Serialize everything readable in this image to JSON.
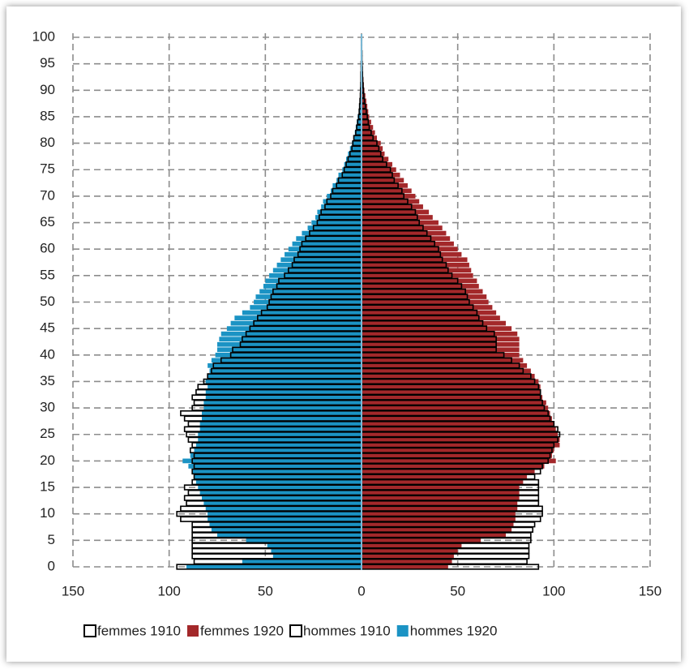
{
  "chart_data": {
    "type": "pyramid",
    "categories": [
      0,
      null,
      null,
      null,
      null,
      5,
      null,
      null,
      null,
      null,
      10,
      null,
      null,
      null,
      null,
      15,
      null,
      null,
      null,
      null,
      20,
      null,
      null,
      null,
      null,
      25,
      null,
      null,
      null,
      null,
      30,
      null,
      null,
      null,
      null,
      35,
      null,
      null,
      null,
      null,
      40,
      null,
      null,
      null,
      null,
      45,
      null,
      null,
      null,
      null,
      50,
      null,
      null,
      null,
      null,
      55,
      null,
      null,
      null,
      null,
      60,
      null,
      null,
      null,
      null,
      65,
      null,
      null,
      null,
      null,
      70,
      null,
      null,
      null,
      null,
      75,
      null,
      null,
      null,
      null,
      80,
      null,
      null,
      null,
      null,
      85,
      null,
      null,
      null,
      null,
      90,
      null,
      null,
      null,
      null,
      95,
      null,
      null,
      null,
      null,
      100
    ],
    "series": [
      {
        "name": "femmes 1910",
        "color": "#000000",
        "style": "outline",
        "values": [
          92,
          86,
          87,
          87,
          87,
          88,
          88,
          89,
          90,
          93,
          94,
          94,
          92,
          92,
          92,
          92,
          92,
          90,
          93,
          94,
          97,
          98,
          99,
          100,
          102,
          103,
          102,
          100,
          98,
          97,
          95,
          94,
          93,
          93,
          92,
          90,
          88,
          84,
          82,
          78,
          74,
          70,
          70,
          70,
          69,
          65,
          63,
          61,
          60,
          58,
          56,
          55,
          54,
          52,
          50,
          47,
          45,
          44,
          42,
          41,
          40,
          38,
          36,
          34,
          32,
          30,
          29,
          28,
          26,
          24,
          22,
          21,
          19,
          17,
          16,
          15,
          13,
          11,
          10,
          9,
          8,
          6,
          5,
          4,
          3.5,
          3,
          2.5,
          2,
          1.5,
          1.2,
          1,
          0.8,
          0.6,
          0.5,
          0.4,
          0.3,
          0.2,
          0.2,
          0.1,
          0.1,
          0.1
        ]
      },
      {
        "name": "femmes 1920",
        "color": "#a3282a",
        "style": "fill",
        "values": [
          45,
          47,
          48,
          50,
          52,
          62,
          75,
          78,
          79,
          80,
          80,
          81,
          81,
          82,
          82,
          82,
          84,
          86,
          90,
          95,
          101,
          99,
          100,
          103,
          103,
          102,
          101,
          100,
          99,
          98,
          97,
          96,
          94,
          93,
          93,
          92,
          90,
          88,
          86,
          84,
          82,
          82,
          82,
          82,
          81,
          78,
          75,
          72,
          70,
          68,
          66,
          65,
          63,
          61,
          60,
          58,
          57,
          56,
          55,
          52,
          50,
          48,
          46,
          44,
          42,
          40,
          37,
          35,
          32,
          30,
          28,
          26,
          24,
          22,
          20,
          18,
          16,
          14,
          12,
          11,
          10,
          8,
          7,
          6,
          5,
          4,
          3.5,
          3,
          2.5,
          2,
          1.5,
          1.2,
          1,
          0.8,
          0.6,
          0.4,
          0.3,
          0.2,
          0.2,
          0.1,
          0.1
        ]
      },
      {
        "name": "hommes 1910",
        "color": "#000000",
        "style": "outline",
        "values": [
          -96,
          -87,
          -88,
          -88,
          -88,
          -88,
          -88,
          -88,
          -88,
          -94,
          -96,
          -94,
          -91,
          -92,
          -90,
          -92,
          -88,
          -87,
          -88,
          -87,
          -88,
          -87,
          -89,
          -88,
          -90,
          -91,
          -92,
          -90,
          -92,
          -94,
          -88,
          -87,
          -88,
          -86,
          -85,
          -82,
          -80,
          -78,
          -77,
          -73,
          -68,
          -67,
          -63,
          -62,
          -60,
          -58,
          -56,
          -54,
          -52,
          -49,
          -48,
          -47,
          -46,
          -44,
          -43,
          -40,
          -38,
          -36,
          -35,
          -33,
          -32,
          -31,
          -29,
          -27,
          -25,
          -23,
          -22,
          -21,
          -19,
          -18,
          -16,
          -15,
          -13,
          -12,
          -10,
          -9,
          -8,
          -7,
          -6,
          -5,
          -4.5,
          -4,
          -3,
          -2.5,
          -2,
          -1.5,
          -1.2,
          -1,
          -0.8,
          -0.6,
          -0.5,
          -0.4,
          -0.3,
          -0.3,
          -0.2,
          -0.2,
          -0.1,
          -0.1,
          -0.1,
          -0.1,
          -0.1
        ]
      },
      {
        "name": "hommes 1920",
        "color": "#1b93c4",
        "style": "fill",
        "values": [
          -91,
          -62,
          -46,
          -47,
          -49,
          -60,
          -75,
          -78,
          -79,
          -80,
          -80,
          -81,
          -82,
          -83,
          -84,
          -85,
          -86,
          -87,
          -88,
          -90,
          -93,
          -89,
          -87,
          -86,
          -85,
          -85,
          -84,
          -84,
          -83,
          -83,
          -82,
          -82,
          -81,
          -81,
          -80,
          -81,
          -80,
          -79,
          -80,
          -78,
          -76,
          -75,
          -75,
          -74,
          -73,
          -70,
          -68,
          -66,
          -62,
          -58,
          -56,
          -55,
          -53,
          -51,
          -50,
          -48,
          -46,
          -44,
          -42,
          -40,
          -38,
          -36,
          -34,
          -31,
          -28,
          -26,
          -24,
          -23,
          -21,
          -20,
          -18,
          -16,
          -15,
          -13,
          -12,
          -10,
          -9,
          -8,
          -7,
          -6,
          -5,
          -4,
          -3.5,
          -3,
          -2.5,
          -2,
          -1.5,
          -1.2,
          -1,
          -0.8,
          -0.6,
          -0.5,
          -0.4,
          -0.3,
          -0.2,
          -0.2,
          -0.1,
          -0.1,
          -0.1,
          -0.1,
          -0.1
        ]
      }
    ],
    "xlim": [
      -150,
      150
    ],
    "xticks": [
      {
        "value": -150,
        "label": "150"
      },
      {
        "value": -100,
        "label": "100"
      },
      {
        "value": -50,
        "label": "50"
      },
      0,
      50,
      100,
      150
    ],
    "grid": true,
    "legend": "bottom"
  }
}
